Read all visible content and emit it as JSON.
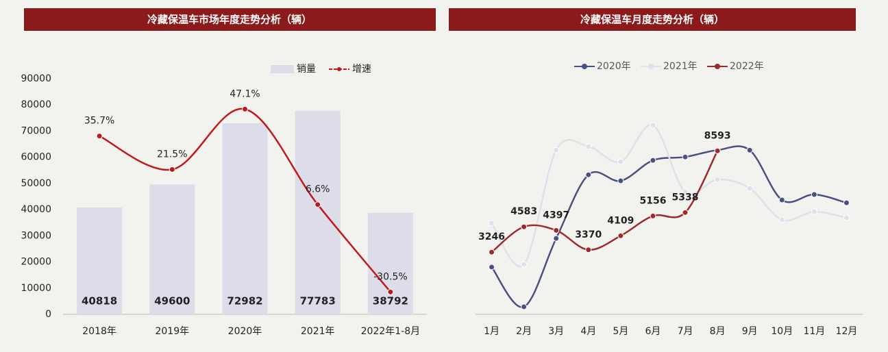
{
  "chart_data": [
    {
      "type": "bar",
      "title": "冷藏保温车市场年度走势分析（辆）",
      "categories": [
        "2018年",
        "2019年",
        "2020年",
        "2021年",
        "2022年1-8月"
      ],
      "series": [
        {
          "name": "销量",
          "color": "#dcdde8",
          "values": [
            40818,
            49600,
            72982,
            77783,
            38792
          ],
          "show_labels": true
        },
        {
          "name": "增速",
          "color": "#c0191b",
          "type": "line",
          "axis": "y2",
          "values": [
            35.7,
            21.5,
            47.1,
            6.6,
            -30.5
          ],
          "value_labels": [
            "35.7%",
            "21.5%",
            "47.1%",
            "6.6%",
            "-30.5%"
          ],
          "smooth": true
        }
      ],
      "ylim": [
        0,
        90000
      ],
      "yticks": [
        0,
        10000,
        20000,
        30000,
        40000,
        50000,
        60000,
        70000,
        80000,
        90000
      ],
      "y2lim": [
        -40,
        60
      ],
      "legend": "top"
    },
    {
      "type": "line",
      "title": "冷藏保温车月度走势分析（辆）",
      "categories": [
        "1月",
        "2月",
        "3月",
        "4月",
        "5月",
        "6月",
        "7月",
        "8月",
        "9月",
        "10月",
        "11月",
        "12月"
      ],
      "series": [
        {
          "name": "2020年",
          "color": "#4a5080",
          "values": [
            2460,
            360,
            3970,
            7330,
            7010,
            8090,
            8270,
            8630,
            8630,
            6000,
            6290,
            5850
          ]
        },
        {
          "name": "2021年",
          "color": "#dfe0ea",
          "values": [
            4770,
            2600,
            8630,
            8820,
            8020,
            9940,
            6430,
            7080,
            6610,
            4950,
            5380,
            5060
          ]
        },
        {
          "name": "2022年",
          "color": "#9e2a2b",
          "values": [
            3246,
            4583,
            4397,
            3370,
            4109,
            5156,
            5338,
            8593,
            null,
            null,
            null,
            null
          ],
          "show_labels": true
        }
      ],
      "ylim": [
        0,
        12000
      ],
      "smooth": true,
      "legend": "top"
    }
  ]
}
